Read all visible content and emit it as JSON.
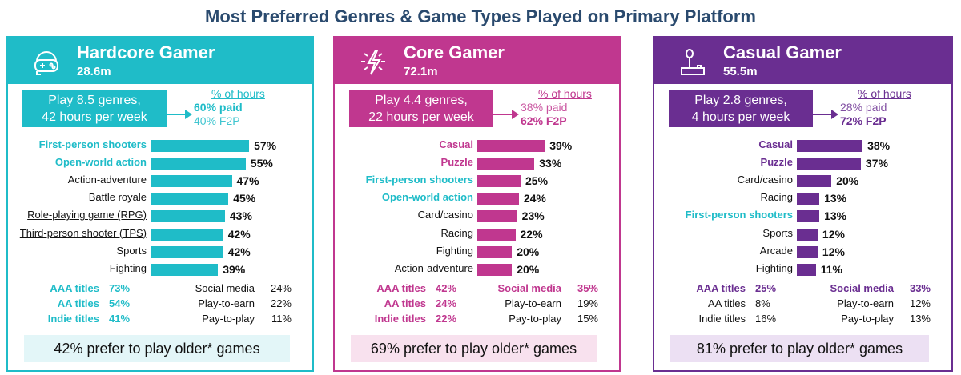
{
  "title": "Most Preferred Genres & Game Types Played on Primary Platform",
  "chart_data": [
    {
      "type": "bar",
      "segment": "Hardcore Gamer",
      "size": "28.6m",
      "color": "#1fbcc8",
      "icon": "gamer-headset-controller-icon",
      "play": [
        "Play 8.5 genres,",
        "42 hours per week"
      ],
      "hours_label": "% of hours",
      "paid": "60% paid",
      "f2p": "40% F2P",
      "bold": "paid",
      "categories": [
        "First-person shooters",
        "Open-world action",
        "Action-adventure",
        "Battle royale",
        "Role-playing game (RPG)",
        "Third-person shooter (TPS)",
        "Sports",
        "Fighting"
      ],
      "values": [
        57,
        55,
        47,
        45,
        43,
        42,
        42,
        39
      ],
      "highlight": [
        true,
        true,
        false,
        false,
        false,
        false,
        false,
        false
      ],
      "underline": [
        false,
        false,
        false,
        false,
        true,
        true,
        false,
        false
      ],
      "left_stats": [
        {
          "label": "AAA titles",
          "value": "73%",
          "hl": true
        },
        {
          "label": "AA titles",
          "value": "54%",
          "hl": true
        },
        {
          "label": "Indie titles",
          "value": "41%",
          "hl": true
        }
      ],
      "right_stats": [
        {
          "label": "Social media",
          "value": "24%",
          "hl": false
        },
        {
          "label": "Play-to-earn",
          "value": "22%",
          "hl": false
        },
        {
          "label": "Pay-to-play",
          "value": "11%",
          "hl": false
        }
      ],
      "banner": "42% prefer to play older* games",
      "banner_bg": "#e3f6f8"
    },
    {
      "type": "bar",
      "segment": "Core Gamer",
      "size": "72.1m",
      "color": "#c0378f",
      "icon": "lightning-icon",
      "play": [
        "Play 4.4 genres,",
        "22 hours per week"
      ],
      "hours_label": "% of hours",
      "paid": "38% paid",
      "f2p": "62% F2P",
      "bold": "f2p",
      "categories": [
        "Casual",
        "Puzzle",
        "First-person shooters",
        "Open-world action",
        "Card/casino",
        "Racing",
        "Fighting",
        "Action-adventure"
      ],
      "values": [
        39,
        33,
        25,
        24,
        23,
        22,
        20,
        20
      ],
      "highlight": [
        "self",
        "self",
        "teal",
        "teal",
        false,
        false,
        false,
        false
      ],
      "underline": [
        false,
        false,
        false,
        false,
        false,
        false,
        false,
        false
      ],
      "left_stats": [
        {
          "label": "AAA titles",
          "value": "42%",
          "hl": true
        },
        {
          "label": "AA titles",
          "value": "24%",
          "hl": true
        },
        {
          "label": "Indie titles",
          "value": "22%",
          "hl": true
        }
      ],
      "right_stats": [
        {
          "label": "Social media",
          "value": "35%",
          "hl": true
        },
        {
          "label": "Play-to-earn",
          "value": "19%",
          "hl": false
        },
        {
          "label": "Pay-to-play",
          "value": "15%",
          "hl": false
        }
      ],
      "banner": "69% prefer to play older* games",
      "banner_bg": "#f8e1ee"
    },
    {
      "type": "bar",
      "segment": "Casual Gamer",
      "size": "55.5m",
      "color": "#6a2e91",
      "icon": "joystick-icon",
      "play": [
        "Play 2.8 genres,",
        "4 hours per week"
      ],
      "hours_label": "% of hours",
      "paid": "28% paid",
      "f2p": "72% F2P",
      "bold": "f2p",
      "categories": [
        "Casual",
        "Puzzle",
        "Card/casino",
        "Racing",
        "First-person shooters",
        "Sports",
        "Arcade",
        "Fighting"
      ],
      "values": [
        38,
        37,
        20,
        13,
        13,
        12,
        12,
        11
      ],
      "highlight": [
        "self",
        "self",
        false,
        false,
        "teal",
        false,
        false,
        false
      ],
      "underline": [
        false,
        false,
        false,
        false,
        false,
        false,
        false,
        false
      ],
      "left_stats": [
        {
          "label": "AAA titles",
          "value": "25%",
          "hl": true
        },
        {
          "label": "AA titles",
          "value": "8%",
          "hl": false
        },
        {
          "label": "Indie titles",
          "value": "16%",
          "hl": false
        }
      ],
      "right_stats": [
        {
          "label": "Social media",
          "value": "33%",
          "hl": true
        },
        {
          "label": "Play-to-earn",
          "value": "12%",
          "hl": false
        },
        {
          "label": "Pay-to-play",
          "value": "13%",
          "hl": false
        }
      ],
      "banner": "81% prefer to play older* games",
      "banner_bg": "#ece0f3"
    }
  ]
}
